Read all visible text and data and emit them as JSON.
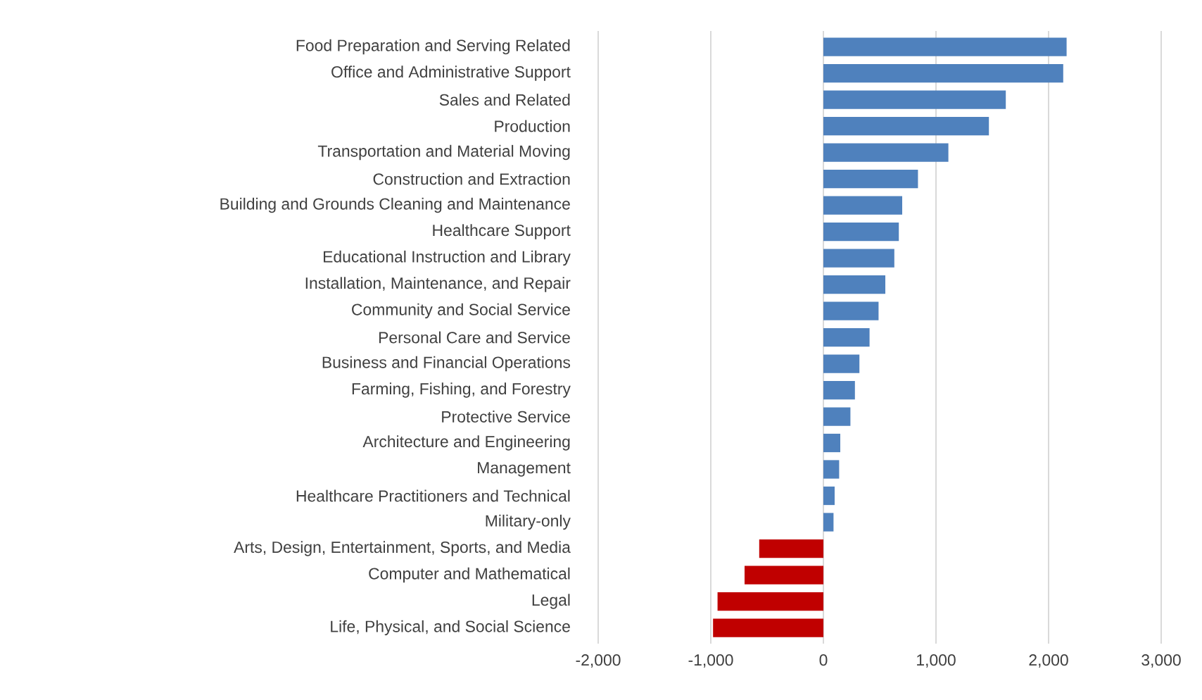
{
  "chart_data": {
    "type": "bar",
    "orientation": "horizontal",
    "grid": "x",
    "categories": [
      "Food Preparation and Serving Related",
      "Office and Administrative Support",
      "Sales and Related",
      "Production",
      "Transportation and Material Moving",
      "Construction and Extraction",
      "Building and Grounds Cleaning and Maintenance",
      "Healthcare Support",
      "Educational Instruction and Library",
      "Installation, Maintenance, and Repair",
      "Community and Social Service",
      "Personal Care and Service",
      "Business and Financial Operations",
      "Farming, Fishing, and Forestry",
      "Protective Service",
      "Architecture and Engineering",
      "Management",
      "Healthcare Practitioners and Technical",
      "Military-only",
      "Arts, Design, Entertainment, Sports, and Media",
      "Computer and Mathematical",
      "Legal",
      "Life, Physical, and Social Science"
    ],
    "values": [
      2160,
      2130,
      1620,
      1470,
      1110,
      840,
      700,
      670,
      630,
      550,
      490,
      410,
      320,
      280,
      240,
      150,
      140,
      100,
      90,
      -570,
      -700,
      -940,
      -980
    ],
    "colors": [
      "#4f81bd",
      "#4f81bd",
      "#4f81bd",
      "#4f81bd",
      "#4f81bd",
      "#4f81bd",
      "#4f81bd",
      "#4f81bd",
      "#4f81bd",
      "#4f81bd",
      "#4f81bd",
      "#4f81bd",
      "#4f81bd",
      "#4f81bd",
      "#4f81bd",
      "#4f81bd",
      "#4f81bd",
      "#4f81bd",
      "#4f81bd",
      "#c00000",
      "#c00000",
      "#c00000",
      "#c00000"
    ],
    "xlim": [
      -2000,
      3000
    ],
    "xticks": [
      {
        "value": -2000,
        "label": "-2,000"
      },
      {
        "value": -1000,
        "label": "-1,000"
      },
      0,
      {
        "value": 1000,
        "label": "1,000"
      },
      {
        "value": 2000,
        "label": "2,000"
      },
      {
        "value": 3000,
        "label": "3,000"
      }
    ]
  }
}
